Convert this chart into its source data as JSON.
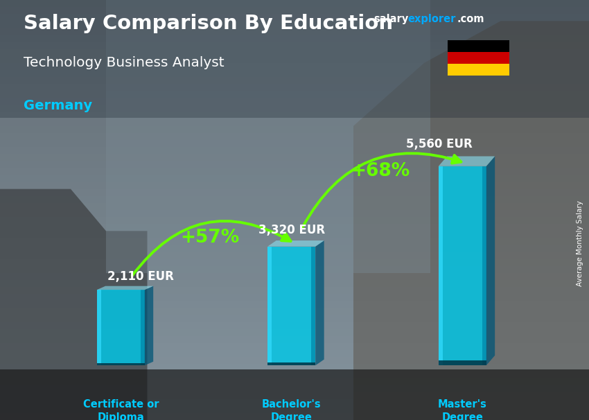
{
  "title_main": "Salary Comparison By Education",
  "subtitle": "Technology Business Analyst",
  "country": "Germany",
  "ylabel": "Average Monthly Salary",
  "website_salary": "salary",
  "website_explorer": "explorer",
  "website_com": ".com",
  "categories": [
    "Certificate or\nDiploma",
    "Bachelor's\nDegree",
    "Master's\nDegree"
  ],
  "values": [
    2110,
    3320,
    5560
  ],
  "labels": [
    "2,110 EUR",
    "3,320 EUR",
    "5,560 EUR"
  ],
  "pct_labels": [
    "+57%",
    "+68%"
  ],
  "bar_color_main": "#00c8e8",
  "bar_color_left": "#33ddff",
  "bar_color_right": "#0088aa",
  "bar_color_dark": "#005577",
  "bar_alpha": 0.82,
  "bar_width": 0.28,
  "ylim": [
    0,
    6800
  ],
  "title_color": "#ffffff",
  "subtitle_color": "#ffffff",
  "country_color": "#00ccff",
  "label_color": "#ffffff",
  "pct_color": "#66ff00",
  "arrow_color": "#66ff00",
  "bg_color_top": "#8a9aaa",
  "bg_color_bot": "#5a6a7a",
  "website_salary_color": "#ffffff",
  "website_explorer_color": "#00aaff",
  "flag_colors": [
    "#000000",
    "#cc0000",
    "#ffcc00"
  ],
  "bar_positions": [
    0.5,
    1.5,
    2.5
  ]
}
